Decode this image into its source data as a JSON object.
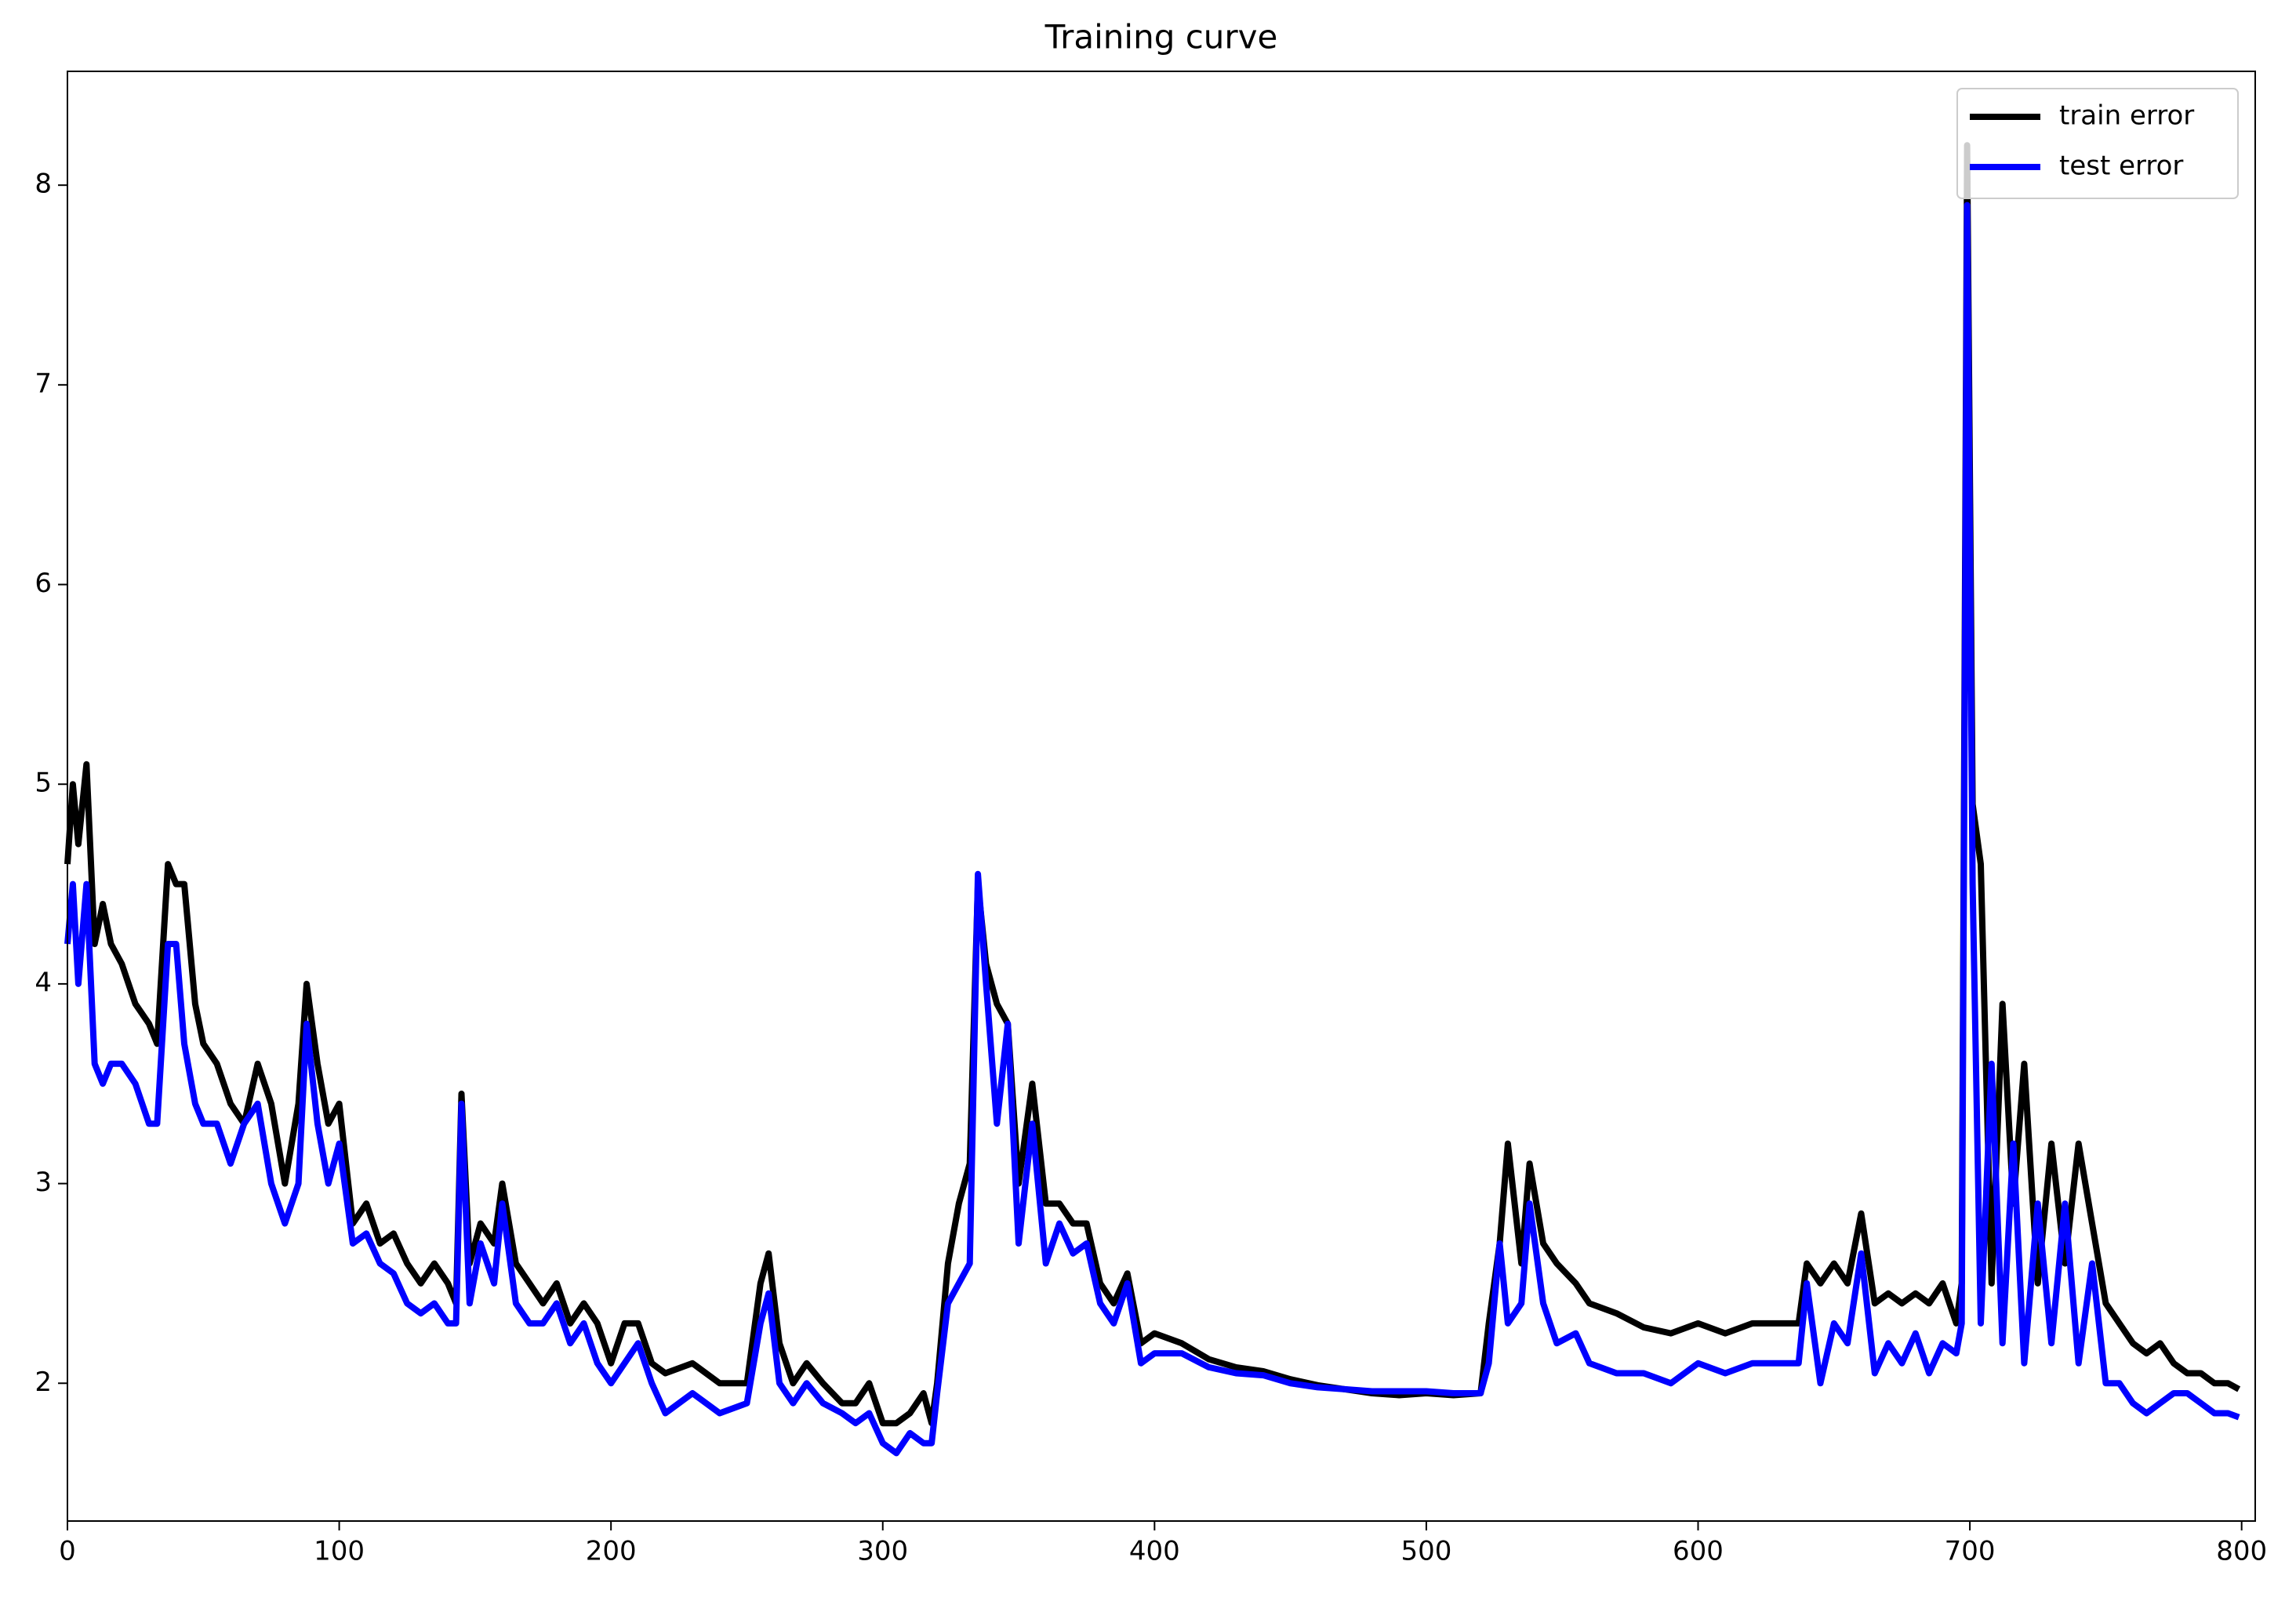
{
  "chart_data": {
    "type": "line",
    "title": "Training curve",
    "x": [
      0,
      2,
      4,
      7,
      10,
      13,
      16,
      20,
      25,
      30,
      33,
      37,
      40,
      43,
      47,
      50,
      55,
      60,
      65,
      70,
      75,
      80,
      85,
      88,
      92,
      96,
      100,
      105,
      110,
      115,
      120,
      125,
      130,
      135,
      140,
      143,
      145,
      148,
      152,
      157,
      160,
      165,
      170,
      175,
      180,
      185,
      190,
      195,
      200,
      205,
      210,
      215,
      220,
      230,
      240,
      250,
      255,
      258,
      262,
      267,
      272,
      278,
      285,
      290,
      295,
      300,
      305,
      310,
      315,
      318,
      320,
      324,
      328,
      332,
      335,
      338,
      342,
      346,
      350,
      355,
      360,
      365,
      370,
      375,
      380,
      385,
      390,
      395,
      400,
      410,
      420,
      430,
      440,
      450,
      460,
      470,
      480,
      490,
      500,
      510,
      520,
      523,
      527,
      530,
      535,
      538,
      543,
      548,
      555,
      560,
      570,
      580,
      590,
      600,
      610,
      620,
      630,
      637,
      640,
      645,
      650,
      655,
      660,
      665,
      670,
      675,
      680,
      685,
      690,
      695,
      697,
      699,
      701,
      704,
      708,
      712,
      716,
      720,
      725,
      730,
      735,
      740,
      745,
      750,
      755,
      760,
      765,
      770,
      775,
      780,
      785,
      790,
      795,
      799
    ],
    "series": [
      {
        "name": "train error",
        "color": "#000000",
        "values": [
          4.6,
          5.0,
          4.7,
          5.1,
          4.2,
          4.4,
          4.2,
          4.1,
          3.9,
          3.8,
          3.7,
          4.6,
          4.5,
          4.5,
          3.9,
          3.7,
          3.6,
          3.4,
          3.3,
          3.6,
          3.4,
          3.0,
          3.4,
          4.0,
          3.6,
          3.3,
          3.4,
          2.8,
          2.9,
          2.7,
          2.75,
          2.6,
          2.5,
          2.6,
          2.5,
          2.4,
          3.45,
          2.6,
          2.8,
          2.7,
          3.0,
          2.6,
          2.5,
          2.4,
          2.5,
          2.3,
          2.4,
          2.3,
          2.1,
          2.3,
          2.3,
          2.1,
          2.05,
          2.1,
          2.0,
          2.0,
          2.5,
          2.65,
          2.2,
          2.0,
          2.1,
          2.0,
          1.9,
          1.9,
          2.0,
          1.8,
          1.8,
          1.85,
          1.95,
          1.8,
          2.0,
          2.6,
          2.9,
          3.1,
          4.5,
          4.1,
          3.9,
          3.8,
          3.0,
          3.5,
          2.9,
          2.9,
          2.8,
          2.8,
          2.5,
          2.4,
          2.55,
          2.2,
          2.25,
          2.2,
          2.12,
          2.08,
          2.06,
          2.02,
          1.99,
          1.97,
          1.95,
          1.94,
          1.95,
          1.94,
          1.95,
          2.3,
          2.7,
          3.2,
          2.6,
          3.1,
          2.7,
          2.6,
          2.5,
          2.4,
          2.35,
          2.28,
          2.25,
          2.3,
          2.25,
          2.3,
          2.3,
          2.3,
          2.6,
          2.5,
          2.6,
          2.5,
          2.85,
          2.4,
          2.45,
          2.4,
          2.45,
          2.4,
          2.5,
          2.3,
          2.5,
          8.2,
          4.9,
          4.6,
          2.5,
          3.9,
          2.9,
          3.6,
          2.5,
          3.2,
          2.6,
          3.2,
          2.8,
          2.4,
          2.3,
          2.2,
          2.15,
          2.2,
          2.1,
          2.05,
          2.05,
          2.0,
          2.0,
          1.97
        ]
      },
      {
        "name": "test error",
        "color": "#0000ff",
        "values": [
          4.2,
          4.5,
          4.0,
          4.5,
          3.6,
          3.5,
          3.6,
          3.6,
          3.5,
          3.3,
          3.3,
          4.2,
          4.2,
          3.7,
          3.4,
          3.3,
          3.3,
          3.1,
          3.3,
          3.4,
          3.0,
          2.8,
          3.0,
          3.8,
          3.3,
          3.0,
          3.2,
          2.7,
          2.75,
          2.6,
          2.55,
          2.4,
          2.35,
          2.4,
          2.3,
          2.3,
          3.4,
          2.4,
          2.7,
          2.5,
          2.9,
          2.4,
          2.3,
          2.3,
          2.4,
          2.2,
          2.3,
          2.1,
          2.0,
          2.1,
          2.2,
          2.0,
          1.85,
          1.95,
          1.85,
          1.9,
          2.3,
          2.45,
          2.0,
          1.9,
          2.0,
          1.9,
          1.85,
          1.8,
          1.85,
          1.7,
          1.65,
          1.75,
          1.7,
          1.7,
          1.95,
          2.4,
          2.5,
          2.6,
          4.55,
          4.0,
          3.3,
          3.8,
          2.7,
          3.3,
          2.6,
          2.8,
          2.65,
          2.7,
          2.4,
          2.3,
          2.5,
          2.1,
          2.15,
          2.15,
          2.08,
          2.05,
          2.04,
          2.0,
          1.98,
          1.97,
          1.96,
          1.96,
          1.96,
          1.95,
          1.95,
          2.1,
          2.7,
          2.3,
          2.4,
          2.9,
          2.4,
          2.2,
          2.25,
          2.1,
          2.05,
          2.05,
          2.0,
          2.1,
          2.05,
          2.1,
          2.1,
          2.1,
          2.5,
          2.0,
          2.3,
          2.2,
          2.65,
          2.05,
          2.2,
          2.1,
          2.25,
          2.05,
          2.2,
          2.15,
          2.3,
          7.9,
          4.5,
          2.3,
          3.6,
          2.2,
          3.2,
          2.1,
          2.9,
          2.2,
          2.9,
          2.1,
          2.6,
          2.0,
          2.0,
          1.9,
          1.85,
          1.9,
          1.95,
          1.95,
          1.9,
          1.85,
          1.85,
          1.83
        ]
      }
    ],
    "xlim": [
      0,
      805
    ],
    "ylim": [
      1.31,
      8.57
    ],
    "xticks": [
      0,
      100,
      200,
      300,
      400,
      500,
      600,
      700,
      800
    ],
    "yticks": [
      2,
      3,
      4,
      5,
      6,
      7,
      8
    ],
    "grid": false,
    "legend": "upper right"
  }
}
